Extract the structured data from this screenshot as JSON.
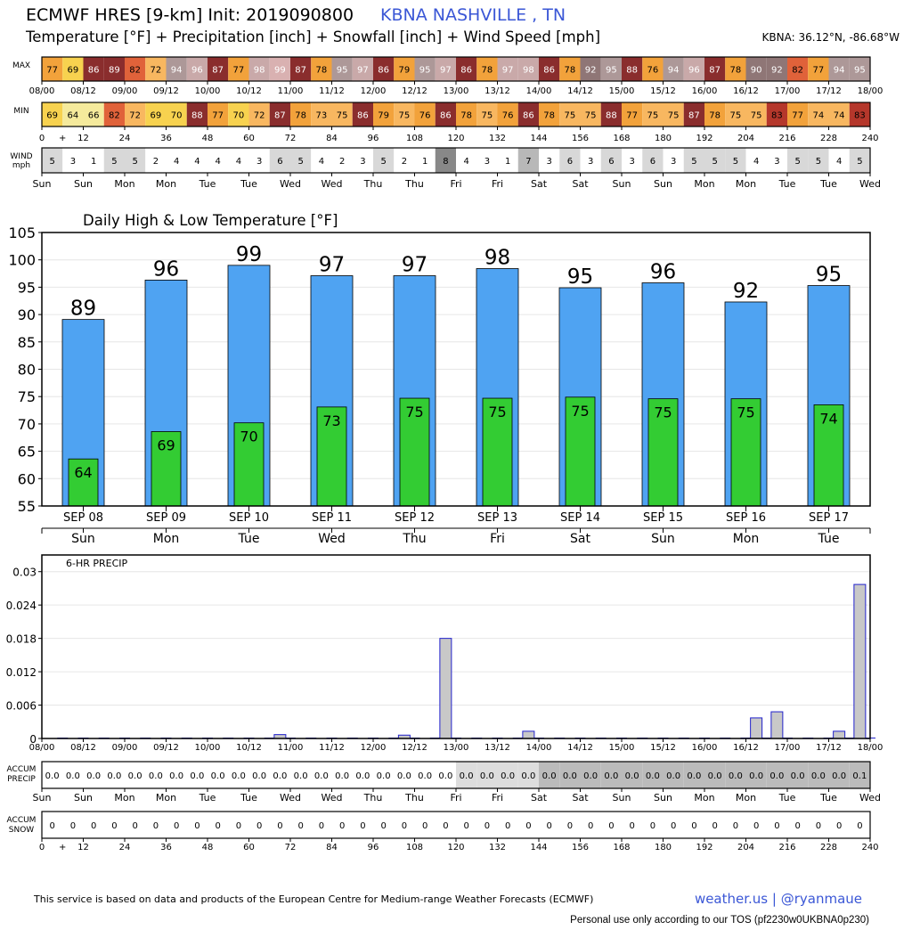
{
  "header": {
    "model_title": "ECMWF HRES [9-km] Init: 2019090800",
    "station": "KBNA NASHVILLE      , TN",
    "subtitle": "Temperature [°F] + Precipitation [inch] + Snowfall [inch] + Wind Speed [mph]",
    "coordinates": "KBNA: 36.12°N, -86.68°W"
  },
  "strip_labels": {
    "max": "MAX",
    "min": "MIN",
    "wind_line1": "WIND",
    "wind_line2": "mph",
    "accum_precip_line1": "ACCUM",
    "accum_precip_line2": "PRECIP",
    "accum_snow_line1": "ACCUM",
    "accum_snow_line2": "SNOW"
  },
  "time_axis": {
    "date_labels": [
      "08/00",
      "08/12",
      "09/00",
      "09/12",
      "10/00",
      "10/12",
      "11/00",
      "11/12",
      "12/00",
      "12/12",
      "13/00",
      "13/12",
      "14/00",
      "14/12",
      "15/00",
      "15/12",
      "16/00",
      "16/12",
      "17/00",
      "17/12",
      "18/00"
    ],
    "hour_labels": [
      "0",
      "+",
      "12",
      "24",
      "36",
      "48",
      "60",
      "72",
      "84",
      "96",
      "108",
      "120",
      "132",
      "144",
      "156",
      "168",
      "180",
      "192",
      "204",
      "216",
      "228",
      "240"
    ],
    "weekday_labels": [
      "Sun",
      "Sun",
      "Mon",
      "Mon",
      "Tue",
      "Tue",
      "Wed",
      "Wed",
      "Thu",
      "Thu",
      "Fri",
      "Fri",
      "Sat",
      "Sat",
      "Sun",
      "Sun",
      "Mon",
      "Mon",
      "Tue",
      "Tue",
      "Wed"
    ]
  },
  "max_temps": [
    77,
    69,
    86,
    89,
    82,
    72,
    94,
    96,
    87,
    77,
    98,
    99,
    87,
    78,
    95,
    97,
    86,
    79,
    95,
    97,
    86,
    78,
    97,
    98,
    86,
    78,
    92,
    95,
    88,
    76,
    94,
    96,
    87,
    78,
    90,
    92,
    82,
    77,
    94,
    95
  ],
  "min_temps": [
    69,
    64,
    66,
    82,
    72,
    69,
    70,
    88,
    77,
    70,
    72,
    87,
    78,
    73,
    75,
    86,
    79,
    75,
    76,
    86,
    78,
    75,
    76,
    86,
    78,
    75,
    75,
    88,
    77,
    75,
    75,
    87,
    78,
    75,
    75,
    83,
    77,
    74,
    74,
    83
  ],
  "wind_speeds": [
    5,
    3,
    1,
    5,
    5,
    2,
    4,
    4,
    4,
    4,
    3,
    6,
    5,
    4,
    2,
    3,
    5,
    2,
    1,
    8,
    4,
    3,
    1,
    7,
    3,
    6,
    3,
    6,
    3,
    6,
    3,
    5,
    5,
    5,
    4,
    3,
    5,
    5,
    4,
    5
  ],
  "accum_precip": [
    "0.0",
    "0.0",
    "0.0",
    "0.0",
    "0.0",
    "0.0",
    "0.0",
    "0.0",
    "0.0",
    "0.0",
    "0.0",
    "0.0",
    "0.0",
    "0.0",
    "0.0",
    "0.0",
    "0.0",
    "0.0",
    "0.0",
    "0.0",
    "0.0",
    "0.0",
    "0.0",
    "0.0",
    "0.0",
    "0.0",
    "0.0",
    "0.0",
    "0.0",
    "0.0",
    "0.0",
    "0.0",
    "0.0",
    "0.0",
    "0.0",
    "0.0",
    "0.0",
    "0.0",
    "0.0",
    "0.1"
  ],
  "accum_snow": [
    "0",
    "0",
    "0",
    "0",
    "0",
    "0",
    "0",
    "0",
    "0",
    "0",
    "0",
    "0",
    "0",
    "0",
    "0",
    "0",
    "0",
    "0",
    "0",
    "0",
    "0",
    "0",
    "0",
    "0",
    "0",
    "0",
    "0",
    "0",
    "0",
    "0",
    "0",
    "0",
    "0",
    "0",
    "0",
    "0",
    "0",
    "0",
    "0",
    "0"
  ],
  "chart_data": [
    {
      "type": "bar",
      "title": "Daily High & Low Temperature [°F]",
      "categories": [
        "SEP 08",
        "SEP 09",
        "SEP 10",
        "SEP 11",
        "SEP 12",
        "SEP 13",
        "SEP 14",
        "SEP 15",
        "SEP 16",
        "SEP 17"
      ],
      "weekdays": [
        "Sun",
        "Mon",
        "Tue",
        "Wed",
        "Thu",
        "Fri",
        "Sat",
        "Sun",
        "Mon",
        "Tue"
      ],
      "series": [
        {
          "values": [
            89,
            96,
            99,
            97,
            97,
            98,
            95,
            96,
            92,
            95
          ],
          "color": "#4fa3f2"
        },
        {
          "values": [
            64,
            69,
            70,
            73,
            75,
            75,
            75,
            75,
            75,
            74
          ],
          "color": "#33cc33"
        }
      ],
      "plotted_high": [
        89.1,
        96.3,
        99.0,
        97.1,
        97.1,
        98.4,
        94.9,
        95.8,
        92.3,
        95.3
      ],
      "plotted_low": [
        63.6,
        68.6,
        70.2,
        73.1,
        74.7,
        74.7,
        74.9,
        74.6,
        74.6,
        73.5
      ],
      "ylim": [
        55,
        105
      ],
      "yticks": [
        "55",
        "60",
        "65",
        "70",
        "75",
        "80",
        "85",
        "90",
        "95",
        "100",
        "105"
      ],
      "grid": true
    },
    {
      "type": "bar",
      "title": "6-HR PRECIP",
      "x_hours": [
        72,
        108,
        120,
        144,
        210,
        216,
        234,
        240
      ],
      "values": [
        0.0007,
        0.0006,
        0.018,
        0.0013,
        0.0037,
        0.0048,
        0.0013,
        0.0277
      ],
      "ylim": [
        0,
        0.033
      ],
      "yticks": [
        "0",
        "0.006",
        "0.012",
        "0.018",
        "0.024",
        "0.03"
      ],
      "grid": true,
      "bar_color": "#c8c8c8",
      "edge_color": "#2222cc"
    }
  ],
  "footer": {
    "credit": "This service is based on data and products of the European Centre for Medium-range Weather Forecasts (ECMWF)",
    "brand": "weather.us | @ryanmaue",
    "tos": "Personal use only according to our TOS (pf2230w0UKBNA0p230)"
  }
}
